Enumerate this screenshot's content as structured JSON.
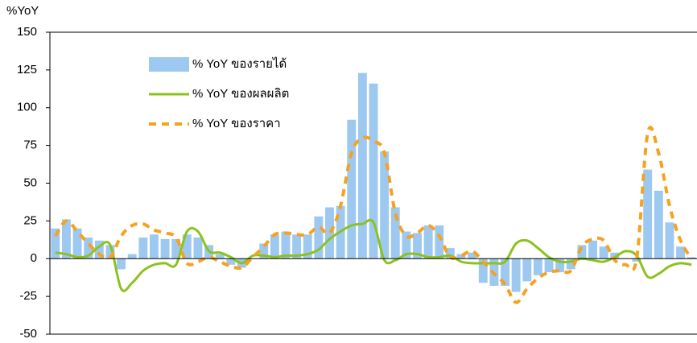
{
  "chart_data": {
    "type": "bar",
    "y_label": "%YoY",
    "ylim": [
      -50,
      150
    ],
    "yticks": [
      -50,
      -25,
      0,
      25,
      50,
      75,
      100,
      125,
      150
    ],
    "legend": "upper left",
    "categories": [
      null,
      null,
      null,
      null,
      null,
      null,
      null,
      null,
      null,
      null,
      null,
      null,
      null,
      null,
      null,
      null,
      null,
      null,
      null,
      null,
      null,
      null,
      null,
      null,
      null,
      null,
      null,
      null,
      null,
      null,
      null,
      null,
      null,
      null,
      null,
      null,
      null,
      null,
      null,
      null,
      null,
      null,
      null,
      null,
      null,
      null,
      null,
      null,
      null,
      null,
      null,
      null,
      null,
      null,
      null,
      null,
      null,
      null,
      null
    ],
    "series": [
      {
        "name": "% YoY ของรายได้",
        "type": "bar",
        "color": "#9dc9f1",
        "values": [
          20,
          26,
          20,
          14,
          12,
          9,
          -7,
          3,
          14,
          16,
          13,
          13,
          16,
          14,
          9,
          3,
          -4,
          -6,
          0,
          10,
          16,
          18,
          16,
          16,
          28,
          34,
          35,
          92,
          123,
          116,
          71,
          34,
          18,
          17,
          22,
          22,
          7,
          3,
          4,
          -16,
          -18,
          -18,
          -22,
          -15,
          -11,
          -9,
          -9,
          -7,
          9,
          12,
          8,
          4,
          0,
          -2,
          59,
          45,
          24,
          8,
          1
        ]
      },
      {
        "name": "% YoY ของผลผลิต",
        "type": "line",
        "color": "#8cc21e",
        "values": [
          4,
          3,
          1,
          2,
          8,
          9,
          -20,
          -16,
          -8,
          -4,
          -3,
          -4,
          18,
          18,
          5,
          4,
          1,
          -3,
          2,
          2,
          1,
          2,
          2,
          3,
          6,
          13,
          18,
          22,
          23,
          24,
          -1,
          -1,
          3,
          3,
          1,
          1,
          2,
          -2,
          -3,
          -3,
          -3,
          -2,
          10,
          12,
          7,
          1,
          -2,
          -2,
          0,
          -1,
          -2,
          1,
          5,
          2,
          -12,
          -10,
          -5,
          -3,
          -4
        ]
      },
      {
        "name": "% YoY ของราคา",
        "type": "dashed-line",
        "color": "#f5a220",
        "values": [
          15,
          25,
          18,
          10,
          3,
          1,
          15,
          22,
          23,
          19,
          17,
          14,
          -3,
          -2,
          1,
          -2,
          -5,
          -6,
          1,
          8,
          16,
          17,
          16,
          16,
          21,
          17,
          35,
          70,
          80,
          78,
          70,
          30,
          15,
          17,
          22,
          15,
          1,
          2,
          5,
          -2,
          -10,
          -17,
          -29,
          -20,
          -13,
          -9,
          -8,
          -8,
          8,
          13,
          12,
          -1,
          -4,
          0,
          83,
          70,
          35,
          12,
          0
        ]
      }
    ]
  }
}
